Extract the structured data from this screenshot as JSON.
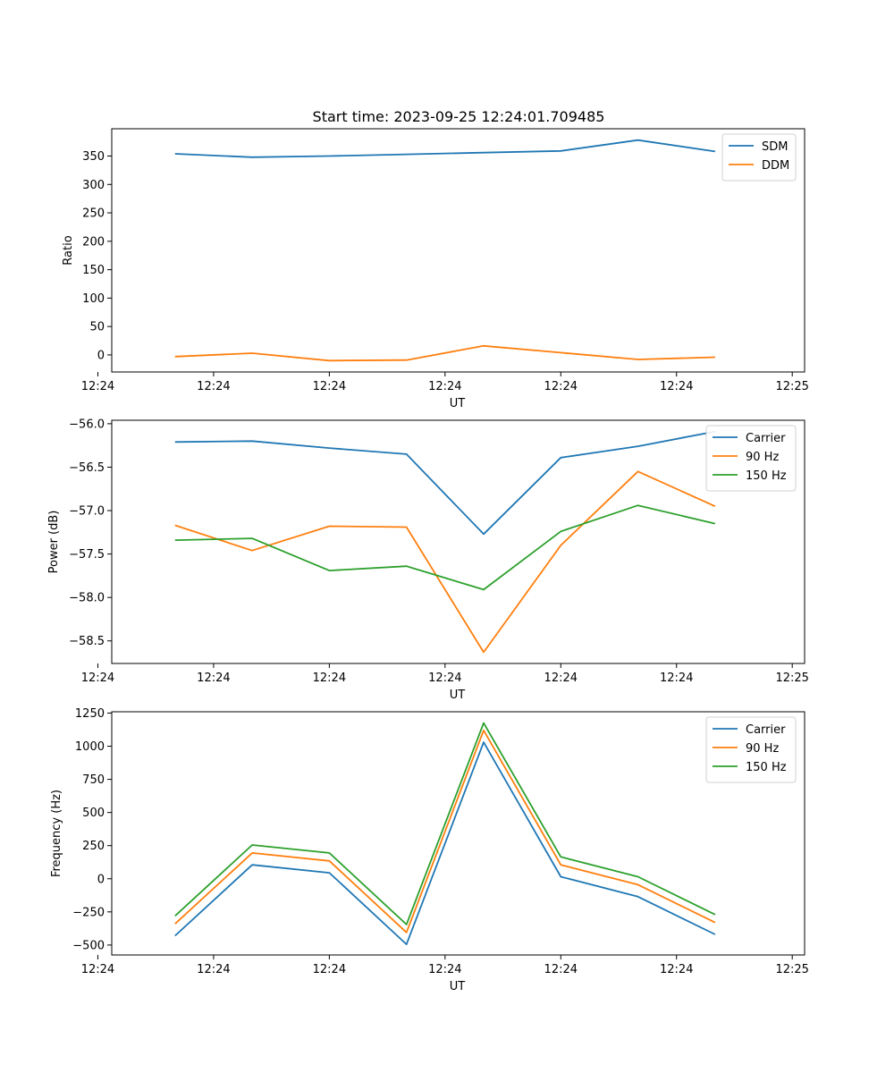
{
  "figure_title": "Start time: 2023-09-25 12:24:01.709485",
  "colors": {
    "blue": "#1f77b4",
    "orange": "#ff7f0e",
    "green": "#2ca02c"
  },
  "chart_data": [
    {
      "type": "line",
      "title": "Start time: 2023-09-25 12:24:01.709485",
      "xlabel": "UT",
      "ylabel": "Ratio",
      "x": [
        1,
        2,
        3,
        4,
        5,
        6,
        7,
        8
      ],
      "xlim": [
        0.18,
        9.16
      ],
      "xticks": [
        0,
        1.5,
        3,
        4.5,
        6,
        7.5,
        9
      ],
      "xtick_labels": [
        "12:24",
        "12:24",
        "12:24",
        "12:24",
        "12:24",
        "12:24",
        "12:25"
      ],
      "ylim": [
        -30,
        398
      ],
      "yticks": [
        0,
        50,
        100,
        150,
        200,
        250,
        300,
        350
      ],
      "ytick_labels": [
        "0",
        "50",
        "100",
        "150",
        "200",
        "250",
        "300",
        "350"
      ],
      "legend": "top-right",
      "series": [
        {
          "name": "SDM",
          "color": "#1f77b4",
          "values": [
            354,
            348,
            350,
            353,
            356,
            359,
            378,
            358
          ]
        },
        {
          "name": "DDM",
          "color": "#ff7f0e",
          "values": [
            -3,
            3,
            -10,
            -9,
            16,
            4,
            -8,
            -4
          ]
        }
      ]
    },
    {
      "type": "line",
      "xlabel": "UT",
      "ylabel": "Power (dB)",
      "x": [
        1,
        2,
        3,
        4,
        5,
        6,
        7,
        8
      ],
      "xlim": [
        0.18,
        9.16
      ],
      "xticks": [
        0,
        1.5,
        3,
        4.5,
        6,
        7.5,
        9
      ],
      "xtick_labels": [
        "12:24",
        "12:24",
        "12:24",
        "12:24",
        "12:24",
        "12:24",
        "12:25"
      ],
      "ylim": [
        -58.76,
        -55.96
      ],
      "yticks": [
        -58.5,
        -58.0,
        -57.5,
        -57.0,
        -56.5,
        -56.0
      ],
      "ytick_labels": [
        "−58.5",
        "−58.0",
        "−57.5",
        "−57.0",
        "−56.5",
        "−56.0"
      ],
      "legend": "top-right",
      "series": [
        {
          "name": "Carrier",
          "color": "#1f77b4",
          "values": [
            -56.21,
            -56.2,
            -56.28,
            -56.35,
            -57.27,
            -56.39,
            -56.26,
            -56.09
          ]
        },
        {
          "name": "90 Hz",
          "color": "#ff7f0e",
          "values": [
            -57.17,
            -57.46,
            -57.18,
            -57.19,
            -58.63,
            -57.4,
            -56.55,
            -56.95
          ]
        },
        {
          "name": "150 Hz",
          "color": "#2ca02c",
          "values": [
            -57.34,
            -57.32,
            -57.69,
            -57.64,
            -57.91,
            -57.24,
            -56.94,
            -57.15
          ]
        }
      ]
    },
    {
      "type": "line",
      "xlabel": "UT",
      "ylabel": "Frequency (Hz)",
      "x": [
        1,
        2,
        3,
        4,
        5,
        6,
        7,
        8
      ],
      "xlim": [
        0.18,
        9.16
      ],
      "xticks": [
        0,
        1.5,
        3,
        4.5,
        6,
        7.5,
        9
      ],
      "xtick_labels": [
        "12:24",
        "12:24",
        "12:24",
        "12:24",
        "12:24",
        "12:24",
        "12:25"
      ],
      "ylim": [
        -575,
        1260
      ],
      "yticks": [
        -500,
        -250,
        0,
        250,
        500,
        750,
        1000,
        1250
      ],
      "ytick_labels": [
        "−500",
        "−250",
        "0",
        "250",
        "500",
        "750",
        "1000",
        "1250"
      ],
      "legend": "top-right",
      "series": [
        {
          "name": "Carrier",
          "color": "#1f77b4",
          "values": [
            -430,
            105,
            45,
            -495,
            1030,
            15,
            -135,
            -420
          ]
        },
        {
          "name": "90 Hz",
          "color": "#ff7f0e",
          "values": [
            -340,
            195,
            135,
            -405,
            1120,
            105,
            -45,
            -330
          ]
        },
        {
          "name": "150 Hz",
          "color": "#2ca02c",
          "values": [
            -280,
            255,
            195,
            -345,
            1175,
            165,
            15,
            -270
          ]
        }
      ]
    }
  ]
}
